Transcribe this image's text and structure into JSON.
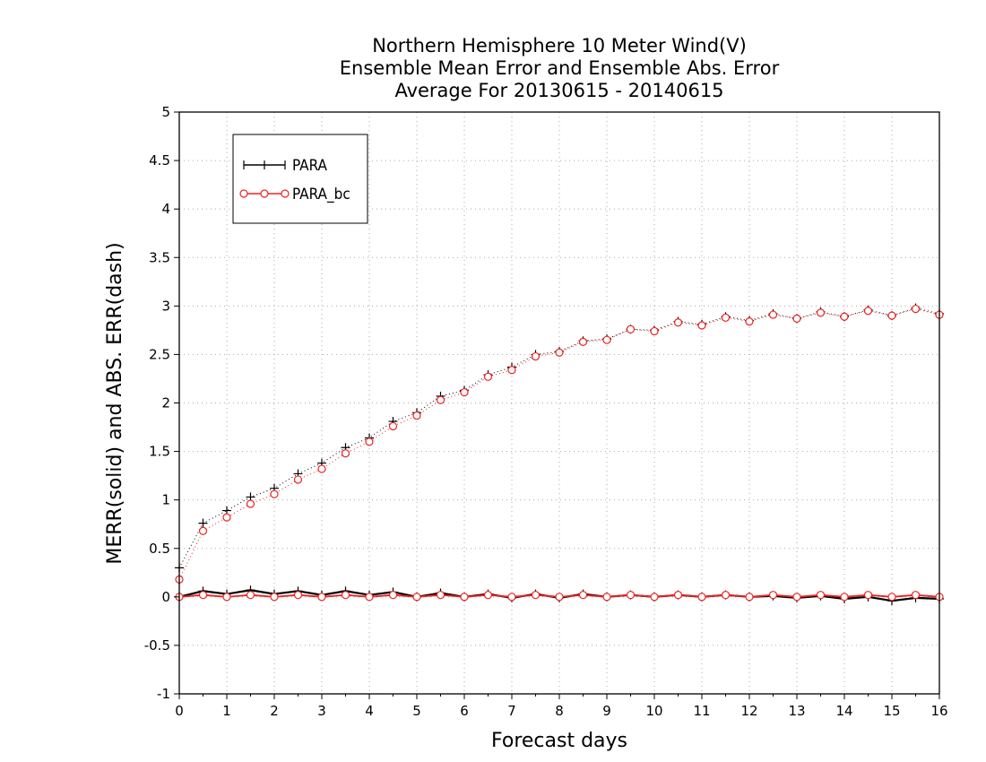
{
  "chart_data": {
    "type": "line",
    "title_lines": [
      "Northern Hemisphere 10 Meter Wind(V)",
      "Ensemble Mean Error and Ensemble Abs. Error",
      "Average For 20130615 - 20140615"
    ],
    "xlabel": "Forecast days",
    "ylabel": "MERR(solid) and ABS. ERR(dash)",
    "xlim": [
      0,
      16
    ],
    "ylim": [
      -1,
      5
    ],
    "x_ticks": [
      "0",
      "1",
      "2",
      "3",
      "4",
      "5",
      "6",
      "7",
      "8",
      "9",
      "10",
      "11",
      "12",
      "13",
      "14",
      "15",
      "16"
    ],
    "y_ticks": [
      "-1",
      "-0.5",
      "0",
      "0.5",
      "1",
      "1.5",
      "2",
      "2.5",
      "3",
      "3.5",
      "4",
      "4.5",
      "5"
    ],
    "grid": true,
    "legend_position": "top-left",
    "x": [
      0,
      0.5,
      1,
      1.5,
      2,
      2.5,
      3,
      3.5,
      4,
      4.5,
      5,
      5.5,
      6,
      6.5,
      7,
      7.5,
      8,
      8.5,
      9,
      9.5,
      10,
      10.5,
      11,
      11.5,
      12,
      12.5,
      13,
      13.5,
      14,
      14.5,
      15,
      15.5,
      16
    ],
    "series": [
      {
        "name": "PARA",
        "color": "#000000",
        "marker": "plus",
        "merr": [
          0.0,
          0.06,
          0.03,
          0.07,
          0.03,
          0.06,
          0.02,
          0.06,
          0.02,
          0.05,
          0.0,
          0.04,
          0.0,
          0.03,
          -0.01,
          0.03,
          -0.01,
          0.03,
          0.0,
          0.02,
          0.0,
          0.02,
          0.0,
          0.02,
          0.0,
          0.01,
          -0.01,
          0.01,
          -0.02,
          0.0,
          -0.04,
          -0.01,
          -0.02
        ],
        "abs_err": [
          0.3,
          0.76,
          0.89,
          1.03,
          1.12,
          1.27,
          1.38,
          1.54,
          1.64,
          1.81,
          1.9,
          2.07,
          2.13,
          2.29,
          2.37,
          2.5,
          2.53,
          2.64,
          2.66,
          2.76,
          2.75,
          2.84,
          2.81,
          2.89,
          2.85,
          2.92,
          2.87,
          2.94,
          2.89,
          2.96,
          2.9,
          2.98,
          2.92
        ]
      },
      {
        "name": "PARA_bc",
        "color": "#ee2222",
        "marker": "circle",
        "merr": [
          0.0,
          0.02,
          0.0,
          0.02,
          0.0,
          0.02,
          0.0,
          0.02,
          0.0,
          0.02,
          0.0,
          0.02,
          0.0,
          0.02,
          0.0,
          0.02,
          0.0,
          0.02,
          0.0,
          0.02,
          0.0,
          0.02,
          0.0,
          0.02,
          0.0,
          0.02,
          0.0,
          0.02,
          0.0,
          0.02,
          0.0,
          0.02,
          0.0
        ],
        "abs_err": [
          0.18,
          0.68,
          0.82,
          0.96,
          1.06,
          1.21,
          1.32,
          1.48,
          1.6,
          1.76,
          1.87,
          2.03,
          2.11,
          2.27,
          2.34,
          2.48,
          2.52,
          2.63,
          2.65,
          2.76,
          2.74,
          2.83,
          2.8,
          2.88,
          2.84,
          2.91,
          2.87,
          2.93,
          2.89,
          2.95,
          2.9,
          2.97,
          2.91
        ]
      }
    ]
  }
}
